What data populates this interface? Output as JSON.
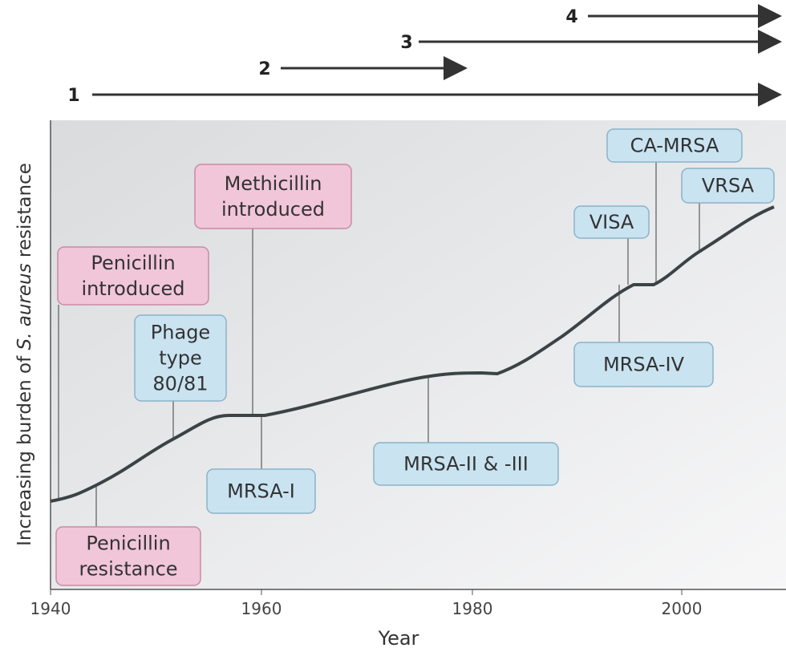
{
  "axes": {
    "x_label": "Year",
    "x_ticks": [
      "1940",
      "1960",
      "1980",
      "2000"
    ],
    "y_label": [
      "Increasing burden of ",
      "S. aureus",
      " resistance"
    ]
  },
  "arrows": [
    "1",
    "2",
    "3",
    "4"
  ],
  "annotations": [
    {
      "lines": [
        "Penicillin",
        "introduced"
      ]
    },
    {
      "lines": [
        "Penicillin",
        "resistance"
      ]
    },
    {
      "lines": [
        "Phage",
        "type",
        "80/81"
      ]
    },
    {
      "lines": [
        "Methicillin",
        "introduced"
      ]
    },
    {
      "lines": [
        "MRSA-I"
      ]
    },
    {
      "lines": [
        "MRSA-II & -III"
      ]
    },
    {
      "lines": [
        "VISA"
      ]
    },
    {
      "lines": [
        "MRSA-IV"
      ]
    },
    {
      "lines": [
        "CA-MRSA"
      ]
    },
    {
      "lines": [
        "VRSA"
      ]
    }
  ]
}
